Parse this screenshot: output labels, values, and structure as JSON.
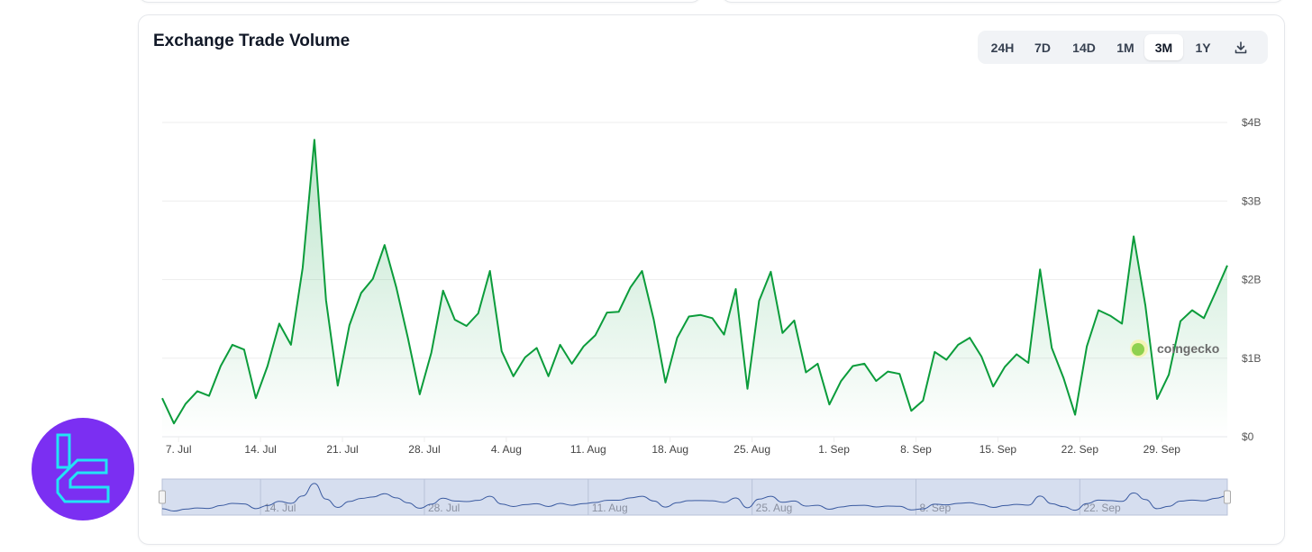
{
  "title": "Exchange Trade Volume",
  "toolbar": {
    "ranges": [
      "24H",
      "7D",
      "14D",
      "1M",
      "3M",
      "1Y"
    ],
    "active": "3M",
    "download_icon": "download-icon"
  },
  "watermark": "coingecko",
  "colors": {
    "line": "#0b9c3b",
    "fill": "#16a34a",
    "navigator_bg": "#d6deef",
    "navigator_line": "#3a5aa0",
    "logo_bg": "#7b2ff2",
    "logo_fg": "#22e4f5"
  },
  "chart_data": {
    "type": "area",
    "title": "",
    "xlabel": "",
    "ylabel": "",
    "ylim": [
      0,
      4000000000
    ],
    "y_ticks": [
      {
        "value": 0,
        "label": "$0"
      },
      {
        "value": 1000000000,
        "label": "$1B"
      },
      {
        "value": 2000000000,
        "label": "$2B"
      },
      {
        "value": 3000000000,
        "label": "$3B"
      },
      {
        "value": 4000000000,
        "label": "$4B"
      }
    ],
    "x_ticks": [
      "7. Jul",
      "14. Jul",
      "21. Jul",
      "28. Jul",
      "4. Aug",
      "11. Aug",
      "18. Aug",
      "25. Aug",
      "1. Sep",
      "8. Sep",
      "15. Sep",
      "22. Sep",
      "29. Sep"
    ],
    "navigator_ticks": [
      "14. Jul",
      "28. Jul",
      "11. Aug",
      "25. Aug",
      "8. Sep",
      "22. Sep"
    ],
    "grid": true,
    "legend": "none",
    "unit": "USD (billions)",
    "values": [
      0.49,
      0.17,
      0.42,
      0.58,
      0.52,
      0.9,
      1.17,
      1.11,
      0.49,
      0.9,
      1.44,
      1.17,
      2.15,
      3.78,
      1.74,
      0.65,
      1.42,
      1.83,
      2.01,
      2.44,
      1.9,
      1.25,
      0.54,
      1.07,
      1.86,
      1.49,
      1.41,
      1.57,
      2.11,
      1.09,
      0.77,
      1.01,
      1.13,
      0.77,
      1.17,
      0.93,
      1.15,
      1.29,
      1.58,
      1.59,
      1.9,
      2.11,
      1.49,
      0.69,
      1.26,
      1.53,
      1.55,
      1.51,
      1.3,
      1.88,
      0.61,
      1.73,
      2.1,
      1.32,
      1.48,
      0.82,
      0.93,
      0.41,
      0.71,
      0.9,
      0.93,
      0.71,
      0.83,
      0.8,
      0.33,
      0.46,
      1.08,
      0.98,
      1.17,
      1.26,
      1.02,
      0.64,
      0.89,
      1.05,
      0.94,
      2.13,
      1.13,
      0.75,
      0.28,
      1.15,
      1.61,
      1.54,
      1.44,
      2.55,
      1.67,
      0.48,
      0.79,
      1.47,
      1.61,
      1.51,
      1.84,
      2.18
    ]
  }
}
